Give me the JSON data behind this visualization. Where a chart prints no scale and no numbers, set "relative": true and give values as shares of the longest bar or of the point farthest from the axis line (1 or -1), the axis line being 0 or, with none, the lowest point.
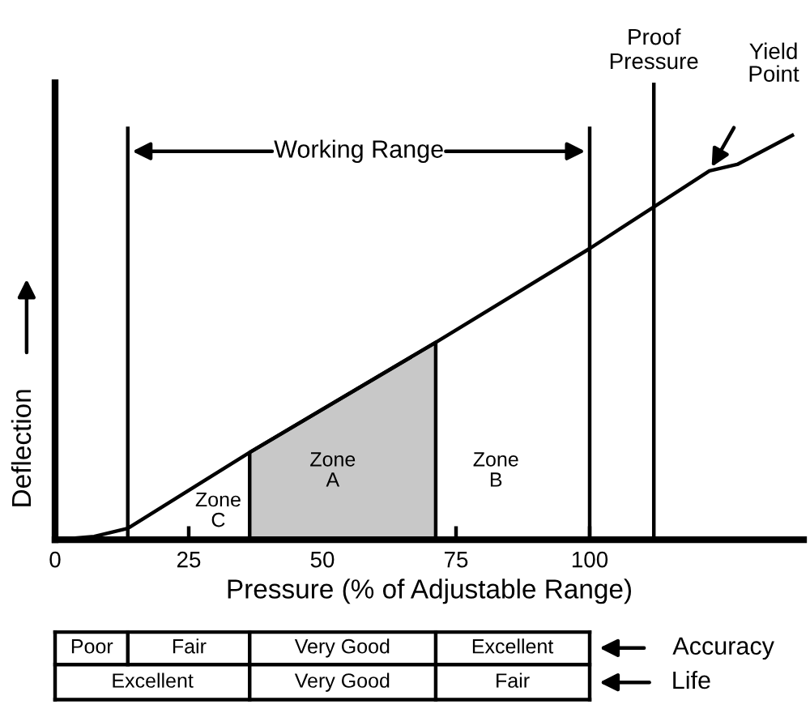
{
  "chart_data": {
    "type": "line",
    "relative": true,
    "xlabel": "Pressure (% of Adjustable Range)",
    "ylabel": "Deflection",
    "xlim": [
      0,
      140
    ],
    "xticks": [
      0,
      25,
      50,
      75,
      100
    ],
    "grid": false,
    "legend": false,
    "marker": "none",
    "line_style": "solid",
    "series": [
      {
        "color": "#000000",
        "x": [
          0,
          7.3,
          13.6,
          36.4,
          71.2,
          100,
          122.4,
          127.6,
          137.9
        ],
        "values": [
          0,
          0.008,
          0.028,
          0.216,
          0.488,
          0.72,
          0.912,
          0.928,
          1
        ]
      },
      {
        "type": "area",
        "color": "#c8c8c8",
        "x": [
          36.4,
          71.2
        ],
        "values": [
          0.216,
          0.488
        ]
      }
    ],
    "ref_lines": [
      {
        "axis": "x",
        "value": 13.6
      },
      {
        "axis": "x",
        "value": 100
      },
      {
        "axis": "x",
        "value": 112,
        "label": "Proof\nPressure"
      }
    ],
    "annotations": [
      "Working Range",
      "Yield\nPoint",
      "Zone\nA",
      "Zone\nB",
      "Zone\nC",
      "Poor",
      "Fair",
      "Very Good",
      "Excellent",
      "Excellent",
      "Very Good",
      "Fair",
      "Accuracy",
      "Life"
    ]
  }
}
